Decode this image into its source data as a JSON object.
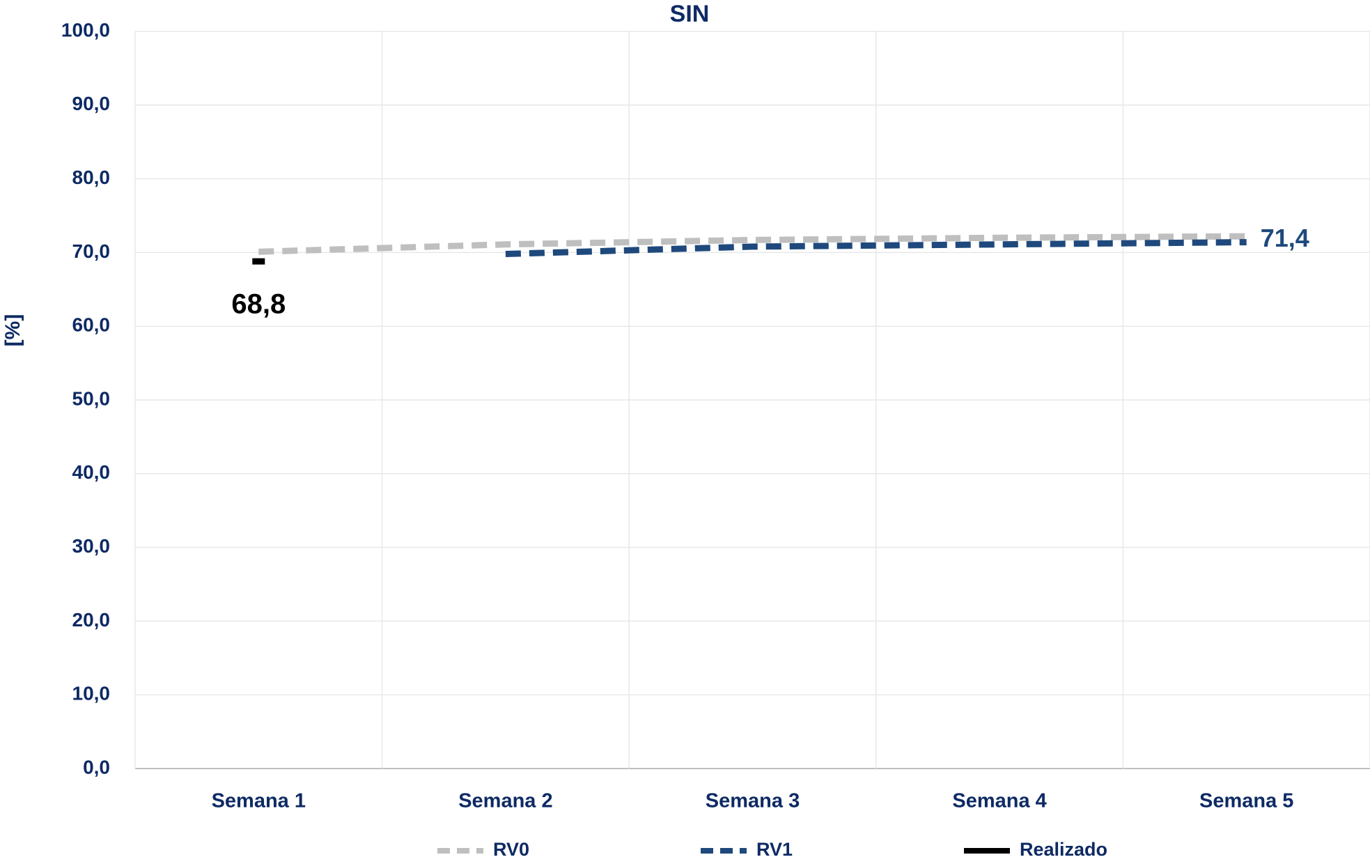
{
  "chart_data": {
    "type": "line",
    "title": "SIN",
    "ylabel": "[%]",
    "categories": [
      "Semana 1",
      "Semana 2",
      "Semana 3",
      "Semana 4",
      "Semana 5"
    ],
    "series": [
      {
        "name": "RV0",
        "color": "#bfbfbf",
        "dashed": true,
        "values": [
          70.1,
          71.1,
          71.7,
          72.0,
          72.2
        ]
      },
      {
        "name": "RV1",
        "color": "#1f497d",
        "dashed": true,
        "values": [
          null,
          69.8,
          70.8,
          71.1,
          71.4
        ],
        "value_labels": [
          null,
          null,
          null,
          null,
          "71,4"
        ]
      },
      {
        "name": "Realizado",
        "color": "#000000",
        "dashed": false,
        "values": [
          68.8,
          null,
          null,
          null,
          null
        ],
        "value_labels": [
          "68,8",
          null,
          null,
          null,
          null
        ]
      }
    ],
    "ylim": [
      0,
      100
    ],
    "yticks": [
      {
        "value": 0,
        "label": "0,0"
      },
      {
        "value": 10,
        "label": "10,0"
      },
      {
        "value": 20,
        "label": "20,0"
      },
      {
        "value": 30,
        "label": "30,0"
      },
      {
        "value": 40,
        "label": "40,0"
      },
      {
        "value": 50,
        "label": "50,0"
      },
      {
        "value": 60,
        "label": "60,0"
      },
      {
        "value": 70,
        "label": "70,0"
      },
      {
        "value": 80,
        "label": "80,0"
      },
      {
        "value": 90,
        "label": "90,0"
      },
      {
        "value": 100,
        "label": "100,0"
      }
    ],
    "grid": true,
    "legend": "bottom"
  }
}
